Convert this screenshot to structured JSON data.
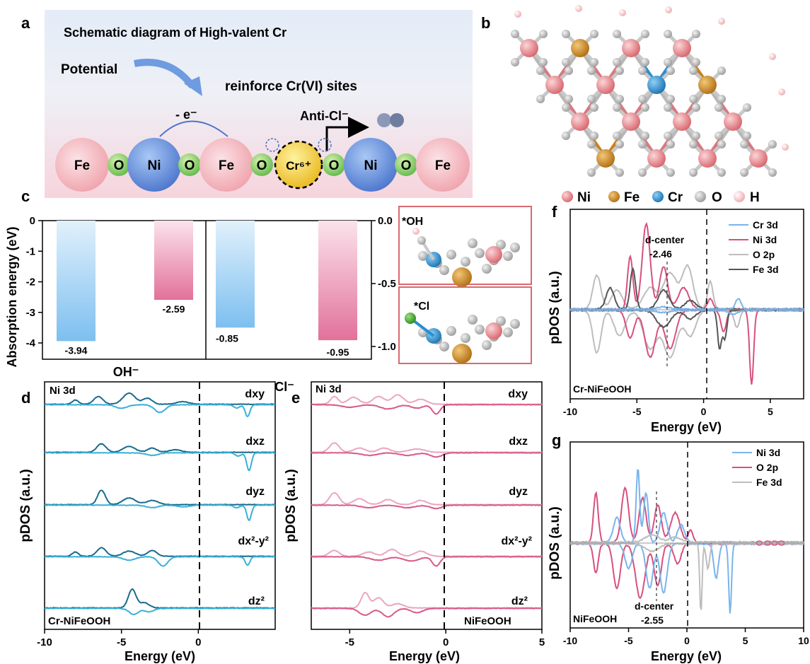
{
  "panels": {
    "a": "a",
    "b": "b",
    "c": "c",
    "d": "d",
    "e": "e",
    "f": "f",
    "g": "g"
  },
  "panel_a": {
    "title": "Schematic diagram of High-valent Cr",
    "potential": "Potential",
    "electron": "- e⁻",
    "reinforce": "reinforce Cr(VI) sites",
    "anticl": "Anti-Cl⁻",
    "chain": [
      "Fe",
      "O",
      "Ni",
      "O",
      "Fe",
      "O",
      "Cr⁶⁺",
      "O",
      "Ni",
      "O",
      "Fe"
    ]
  },
  "panel_b": {
    "legend": [
      {
        "label": "Ni",
        "color": "#e8878d"
      },
      {
        "label": "Fe",
        "color": "#c9821f"
      },
      {
        "label": "Cr",
        "color": "#2a8fd0"
      },
      {
        "label": "O",
        "color": "#b8b8b8"
      },
      {
        "label": "H",
        "color": "#f5c9cc"
      }
    ]
  },
  "panel_c": {
    "ylabel": "Absorption energy (eV)",
    "left_ticks": [
      "0",
      "-1",
      "-2",
      "-3",
      "-4"
    ],
    "right_ticks": [
      "0.0",
      "-0.5",
      "-1.0"
    ],
    "header_left": "OH⁻",
    "header_right": "Cl⁻",
    "inset_oh": "*OH",
    "inset_cl": "*Cl",
    "chart_data": [
      {
        "type": "bar",
        "categories": [
          "OH⁻ Cr-NiFeOOH",
          "OH⁻ NiFeOOH"
        ],
        "values": [
          -3.94,
          -2.59
        ],
        "labels": [
          "-3.94",
          "-2.59"
        ],
        "ylim": [
          -4.4,
          0
        ]
      },
      {
        "type": "bar",
        "categories": [
          "Cl⁻ Cr-NiFeOOH",
          "Cl⁻ NiFeOOH"
        ],
        "values": [
          -0.85,
          -0.95
        ],
        "labels": [
          "-0.85",
          "-0.95"
        ],
        "ylim": [
          -1.1,
          0
        ]
      }
    ]
  },
  "panel_d": {
    "label_top": "Ni 3d",
    "sample": "Cr-NiFeOOH",
    "orbitals": [
      "dxy",
      "dxz",
      "dyz",
      "dx²-y²",
      "dz²"
    ],
    "xlabel": "Energy (eV)",
    "ylabel": "pDOS (a.u.)",
    "xticks": [
      "-10",
      "-5",
      "0"
    ],
    "xlim": [
      -10,
      5
    ],
    "colors": {
      "up": "#1a6b8c",
      "down": "#3ab0d8"
    }
  },
  "panel_e": {
    "label_top": "Ni 3d",
    "sample": "NiFeOOH",
    "orbitals": [
      "dxy",
      "dxz",
      "dyz",
      "dx²-y²",
      "dz²"
    ],
    "xlabel": "Energy (eV)",
    "ylabel": "pDOS (a.u.)",
    "xticks": [
      "-5",
      "0",
      "5"
    ],
    "xlim": [
      -7,
      5
    ],
    "colors": {
      "up": "#eaa6c0",
      "down": "#d85a8a"
    }
  },
  "panel_f": {
    "ylabel": "pDOS (a.u.)",
    "xlabel": "Energy (eV)",
    "xticks": [
      "-10",
      "-5",
      "0",
      "5"
    ],
    "xlim": [
      -10,
      7.5
    ],
    "sample": "Cr-NiFeOOH",
    "dcenter_label": "d-center",
    "dcenter_value": "-2.46",
    "legend": [
      {
        "label": "Cr 3d",
        "color": "#7ab4ec"
      },
      {
        "label": "Ni 3d",
        "color": "#d8507e"
      },
      {
        "label": "O 2p",
        "color": "#bdbdbd"
      },
      {
        "label": "Fe 3d",
        "color": "#555555"
      }
    ]
  },
  "panel_g": {
    "ylabel": "pDOS (a.u.)",
    "xlabel": "Energy (eV)",
    "xticks": [
      "-10",
      "-5",
      "0",
      "5",
      "10"
    ],
    "xlim": [
      -10,
      10
    ],
    "sample": "NiFeOOH",
    "dcenter_label": "d-center",
    "dcenter_value": "-2.55",
    "legend": [
      {
        "label": "Ni 3d",
        "color": "#7ab4ec"
      },
      {
        "label": "O 2p",
        "color": "#d8507e"
      },
      {
        "label": "Fe 3d",
        "color": "#bdbdbd"
      }
    ]
  }
}
